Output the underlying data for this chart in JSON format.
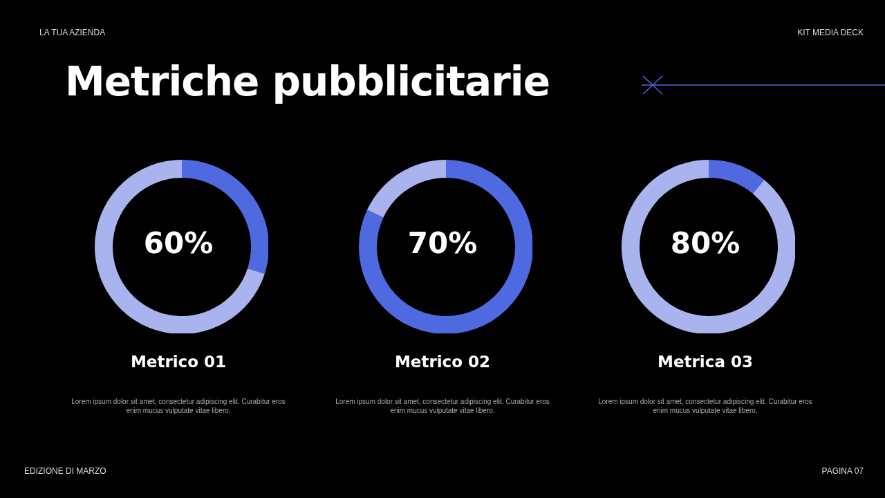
{
  "chart_data": [
    {
      "type": "other",
      "title": "Metriche pubblicitarie",
      "annotations": [
        "LA TUA AZIENDA",
        "KIT MEDIA DECK",
        "EDIZIONE DI MARZO",
        "PAGINA 07"
      ]
    },
    {
      "type": "donut",
      "title": "Metrico 01",
      "categories": [
        null,
        null
      ],
      "values": [
        30,
        70
      ],
      "colors": [
        "#4f6ae0",
        "#a9b4ee"
      ],
      "annotations": [
        "60%",
        "Lorem ipsum dolor sit amet, consectetur adipiscing elit. Curabitur eros enim mucus vulputate vitae libero."
      ]
    },
    {
      "type": "donut",
      "title": "Metrico 02",
      "categories": [
        null,
        null
      ],
      "values": [
        82,
        18
      ],
      "colors": [
        "#4f6ae0",
        "#a9b4ee"
      ],
      "annotations": [
        "70%",
        "Lorem ipsum dolor sit amet, consectetur adipiscing elit. Curabitur eros enim mucus vulputate vitae libero."
      ]
    },
    {
      "type": "donut",
      "title": "Metrica 03",
      "categories": [
        null,
        null
      ],
      "values": [
        11,
        89
      ],
      "colors": [
        "#4f6ae0",
        "#a9b4ee"
      ],
      "annotations": [
        "80%",
        "Lorem ipsum dolor sit amet, consectetur adipiscing elit. Curabitur eros enim mucus vulputate vitae libero."
      ]
    }
  ]
}
